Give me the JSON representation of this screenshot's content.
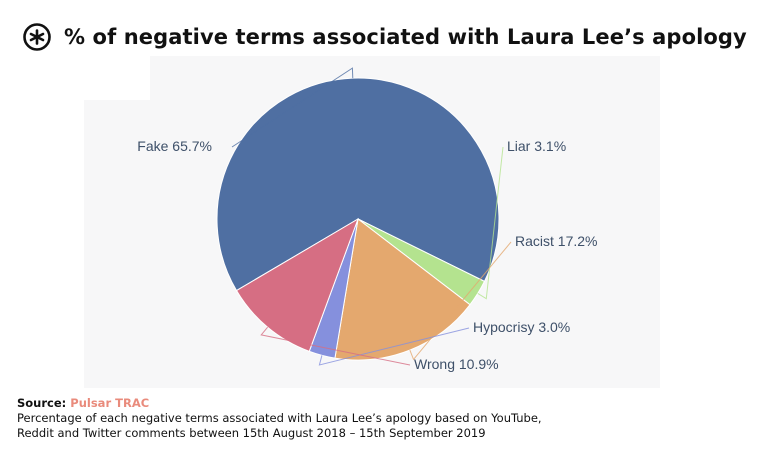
{
  "header": {
    "title": "% of negative terms associated with Laura Lee’s apology"
  },
  "footer": {
    "source_label": "Source:",
    "source_name": "Pulsar TRAC",
    "caption_line1": "Percentage of each negative terms associated with Laura Lee’s apology based on YouTube,",
    "caption_line2": "Reddit and Twitter comments between 15th August 2018 – 15th September 2019"
  },
  "colors": {
    "brand_accent": "#e98b7c",
    "label_text": "#3e5069"
  },
  "chart_data": {
    "type": "pie",
    "title": "% of negative terms associated with Laura Lee’s apology",
    "slices": [
      {
        "label": "Fake 65.7%",
        "value": 65.7,
        "color": "#4f6fa2"
      },
      {
        "label": "Liar 3.1%",
        "value": 3.1,
        "color": "#b4e38f"
      },
      {
        "label": "Racist 17.2%",
        "value": 17.2,
        "color": "#e4a86e"
      },
      {
        "label": "Hypocrisy 3.0%",
        "value": 3.0,
        "color": "#8590dd"
      },
      {
        "label": "Wrong 10.9%",
        "value": 10.9,
        "color": "#d66e83"
      }
    ],
    "legend": "none"
  }
}
